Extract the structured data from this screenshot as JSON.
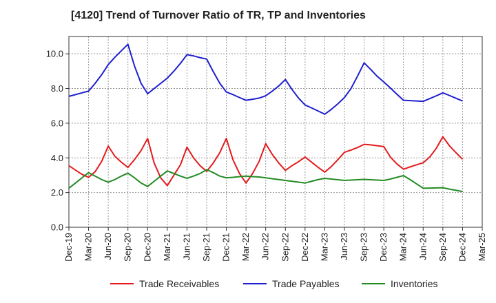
{
  "title": "[4120]  Trend of Turnover Ratio of TR, TP and Inventories",
  "chart_data": {
    "type": "line",
    "title": "[4120]  Trend of Turnover Ratio of TR, TP and Inventories",
    "xlabel": "",
    "ylabel": "",
    "ylim": [
      0,
      11
    ],
    "yticks": [
      "0.0",
      "2.0",
      "4.0",
      "6.0",
      "8.0",
      "10.0"
    ],
    "x_tick_labels": [
      "Dec-19",
      "Mar-20",
      "Jun-20",
      "Sep-20",
      "Dec-20",
      "Mar-21",
      "Jun-21",
      "Sep-21",
      "Dec-21",
      "Mar-22",
      "Jun-22",
      "Sep-22",
      "Dec-22",
      "Mar-23",
      "Jun-23",
      "Sep-23",
      "Dec-23",
      "Mar-24",
      "Jun-24",
      "Sep-24",
      "Dec-24",
      "Mar-25"
    ],
    "grid": true,
    "legend_position": "bottom",
    "x": [
      "Dec-19",
      "Jan-20",
      "Feb-20",
      "Mar-20",
      "Apr-20",
      "May-20",
      "Jun-20",
      "Jul-20",
      "Aug-20",
      "Sep-20",
      "Oct-20",
      "Nov-20",
      "Dec-20",
      "Jan-21",
      "Feb-21",
      "Mar-21",
      "Apr-21",
      "May-21",
      "Jun-21",
      "Jul-21",
      "Aug-21",
      "Sep-21",
      "Oct-21",
      "Nov-21",
      "Dec-21",
      "Jan-22",
      "Feb-22",
      "Mar-22",
      "Apr-22",
      "May-22",
      "Jun-22",
      "Jul-22",
      "Aug-22",
      "Sep-22",
      "Oct-22",
      "Nov-22",
      "Dec-22",
      "Jan-23",
      "Feb-23",
      "Mar-23",
      "Apr-23",
      "May-23",
      "Jun-23",
      "Jul-23",
      "Aug-23",
      "Sep-23",
      "Oct-23",
      "Nov-23",
      "Dec-23",
      "Jan-24",
      "Feb-24",
      "Mar-24",
      "Apr-24",
      "May-24",
      "Jun-24",
      "Jul-24",
      "Aug-24",
      "Sep-24",
      "Oct-24",
      "Nov-24",
      "Dec-24"
    ],
    "series": [
      {
        "name": "Trade Receivables",
        "color": "#e41a1c",
        "values": [
          3.55,
          3.3,
          3.05,
          2.88,
          3.2,
          3.8,
          4.68,
          4.1,
          3.75,
          3.45,
          3.9,
          4.42,
          5.12,
          3.7,
          2.85,
          2.4,
          3.0,
          3.6,
          4.62,
          4.0,
          3.55,
          3.22,
          3.7,
          4.3,
          5.12,
          3.9,
          3.1,
          2.55,
          3.1,
          3.8,
          4.82,
          4.2,
          3.7,
          3.28,
          3.55,
          3.78,
          4.05,
          3.75,
          3.45,
          3.18,
          3.5,
          3.9,
          4.32,
          4.45,
          4.6,
          4.78,
          4.75,
          4.7,
          4.65,
          4.05,
          3.65,
          3.35,
          3.48,
          3.6,
          3.72,
          4.05,
          4.55,
          5.22,
          4.7,
          4.3,
          3.92
        ]
      },
      {
        "name": "Trade Payables",
        "color": "#1f1fcf",
        "values": [
          7.55,
          7.65,
          7.75,
          7.85,
          8.3,
          8.8,
          9.38,
          9.8,
          10.18,
          10.55,
          9.3,
          8.3,
          7.7,
          8.0,
          8.3,
          8.6,
          9.0,
          9.45,
          9.95,
          9.88,
          9.78,
          9.7,
          8.98,
          8.3,
          7.8,
          7.65,
          7.48,
          7.32,
          7.38,
          7.45,
          7.58,
          7.85,
          8.15,
          8.52,
          7.95,
          7.45,
          7.05,
          6.88,
          6.7,
          6.52,
          6.8,
          7.12,
          7.48,
          8.0,
          8.72,
          9.48,
          9.1,
          8.7,
          8.38,
          8.03,
          7.67,
          7.32,
          7.3,
          7.28,
          7.26,
          7.42,
          7.58,
          7.75,
          7.6,
          7.44,
          7.28
        ]
      },
      {
        "name": "Inventories",
        "color": "#228b22",
        "values": [
          2.25,
          2.55,
          2.85,
          3.15,
          2.95,
          2.75,
          2.6,
          2.75,
          2.95,
          3.12,
          2.85,
          2.55,
          2.35,
          2.65,
          2.95,
          3.25,
          3.1,
          2.95,
          2.82,
          2.95,
          3.1,
          3.32,
          3.15,
          2.95,
          2.85,
          2.88,
          2.92,
          2.95,
          2.92,
          2.9,
          2.85,
          2.8,
          2.75,
          2.7,
          2.65,
          2.6,
          2.55,
          2.65,
          2.75,
          2.82,
          2.78,
          2.74,
          2.7,
          2.72,
          2.74,
          2.76,
          2.74,
          2.72,
          2.7,
          2.78,
          2.88,
          2.98,
          2.75,
          2.5,
          2.25,
          2.26,
          2.27,
          2.28,
          2.2,
          2.13,
          2.06
        ]
      }
    ]
  }
}
